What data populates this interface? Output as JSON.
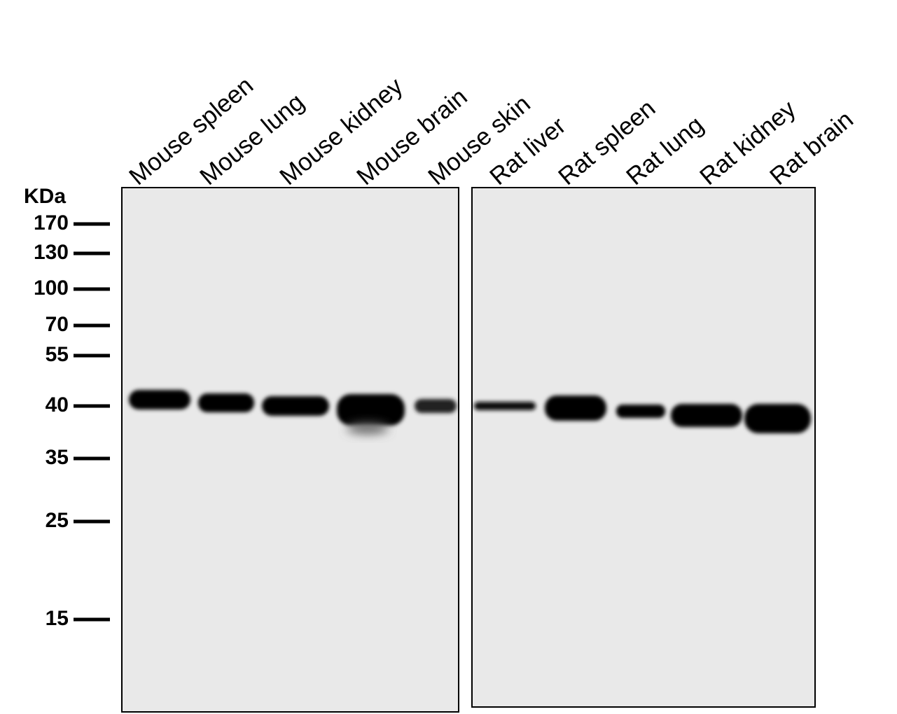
{
  "marker_unit": "KDa",
  "markers": [
    170,
    130,
    100,
    70,
    55,
    40,
    35,
    25,
    15
  ],
  "panels": [
    {
      "lanes": [
        "Mouse spleen",
        "Mouse lung",
        "Mouse kidney",
        "Mouse brain",
        "Mouse skin"
      ]
    },
    {
      "lanes": [
        "Rat liver",
        "Rat spleen",
        "Rat lung",
        "Rat kidney",
        "Rat brain"
      ]
    }
  ]
}
